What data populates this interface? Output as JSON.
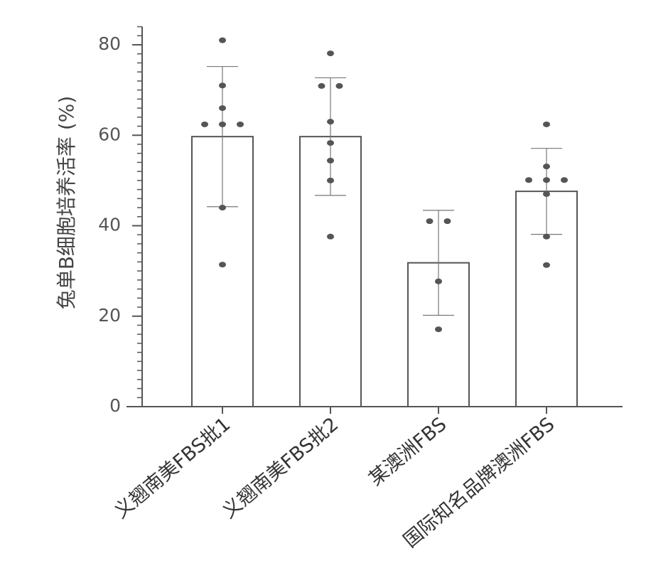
{
  "chart_data": {
    "type": "bar",
    "y_label": "兔单B细胞培养活率 (%)",
    "categories": [
      "义翘南美FBS批1",
      "义翘南美FBS批2",
      "某澳洲FBS",
      "国际知名品牌澳洲FBS"
    ],
    "values": [
      59.7,
      59.7,
      31.8,
      47.6
    ],
    "errors": [
      15.5,
      13.0,
      11.6,
      9.5
    ],
    "points": [
      [
        81.0,
        71.0,
        66.0,
        62.4,
        62.4,
        62.4,
        44.0,
        31.4
      ],
      [
        78.1,
        70.9,
        70.9,
        63.0,
        58.3,
        54.4,
        50.0,
        37.6
      ],
      [
        41.0,
        41.0,
        27.7,
        17.1
      ],
      [
        62.4,
        53.1,
        50.1,
        50.1,
        50.1,
        47.0,
        37.6,
        31.3
      ]
    ],
    "color": "#ffffff",
    "edge_color": "#555555",
    "point_color": "#555555",
    "ylim": [
      0,
      84
    ],
    "yticks": [
      0,
      20,
      40,
      60,
      80
    ],
    "y_minor_step": 2,
    "grid": false
  }
}
